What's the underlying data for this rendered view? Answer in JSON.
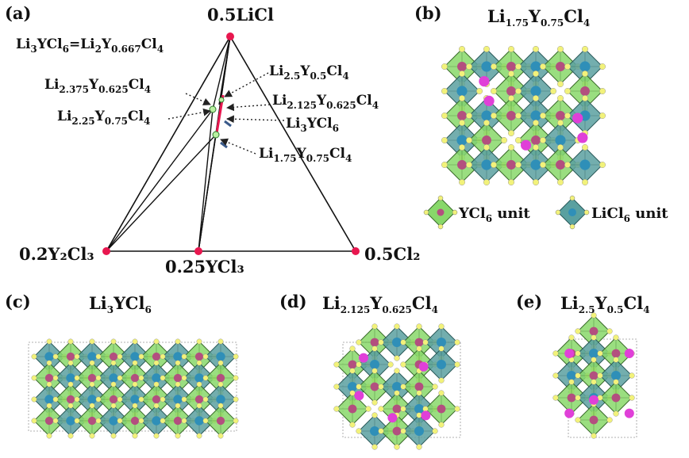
{
  "panels": {
    "a": {
      "label": "(a)",
      "vertices": {
        "top": "0.5LiCl",
        "left": "0.2Y₂Cl₃",
        "right": "0.5Cl₂",
        "mid": "0.25YCl₃"
      },
      "compounds": [
        {
          "base": "Li",
          "s1": "3",
          "mid": "YCl",
          "s2": "6",
          "mid2": "=Li",
          "s3": "2",
          "mid3": "Y",
          "s4": "0.667",
          "tail": "Cl",
          "s5": "4"
        },
        {
          "base": "Li",
          "s1": "2.5",
          "mid": "Y",
          "s2": "0.5",
          "tail": "Cl",
          "s3": "4"
        },
        {
          "base": "Li",
          "s1": "2.375",
          "mid": "Y",
          "s2": "0.625",
          "tail": "Cl",
          "s3": "4"
        },
        {
          "base": "Li",
          "s1": "2.125",
          "mid": "Y",
          "s2": "0.625",
          "tail": "Cl",
          "s3": "4"
        },
        {
          "base": "Li",
          "s1": "2.25",
          "mid": "Y",
          "s2": "0.75",
          "tail": "Cl",
          "s3": "4"
        },
        {
          "base": "Li",
          "s1": "3",
          "mid": "YCl",
          "s2": "6"
        },
        {
          "base": "Li",
          "s1": "1.75",
          "mid": "Y",
          "s2": "0.75",
          "tail": "Cl",
          "s3": "4"
        }
      ]
    },
    "b": {
      "label": "(b)",
      "title": {
        "base": "Li",
        "s1": "1.75",
        "mid": "Y",
        "s2": "0.75",
        "tail": "Cl",
        "s3": "4"
      },
      "legend": [
        {
          "base": "YCl",
          "sub": "6",
          "rest": " unit"
        },
        {
          "base": "LiCl",
          "sub": "6",
          "rest": " unit"
        }
      ]
    },
    "c": {
      "label": "(c)",
      "title": {
        "base": "Li",
        "s1": "3",
        "mid": "YCl",
        "s2": "6"
      }
    },
    "d": {
      "label": "(d)",
      "title": {
        "base": "Li",
        "s1": "2.125",
        "mid": "Y",
        "s2": "0.625",
        "tail": "Cl",
        "s3": "4"
      }
    },
    "e": {
      "label": "(e)",
      "title": {
        "base": "Li",
        "s1": "2.5",
        "mid": "Y",
        "s2": "0.5",
        "tail": "Cl",
        "s3": "4"
      }
    }
  },
  "colors": {
    "vertex": "#e8174f",
    "highlight": "#e8174f",
    "li_octahedron": "#5aa0a0",
    "y_octahedron": "#88d86a",
    "cl_atom": "#f2f27a",
    "y_atom": "#b34f7f",
    "li_atom": "#2f8fb8",
    "interstitial_li": "#e040d8",
    "arrow": "#333333"
  }
}
